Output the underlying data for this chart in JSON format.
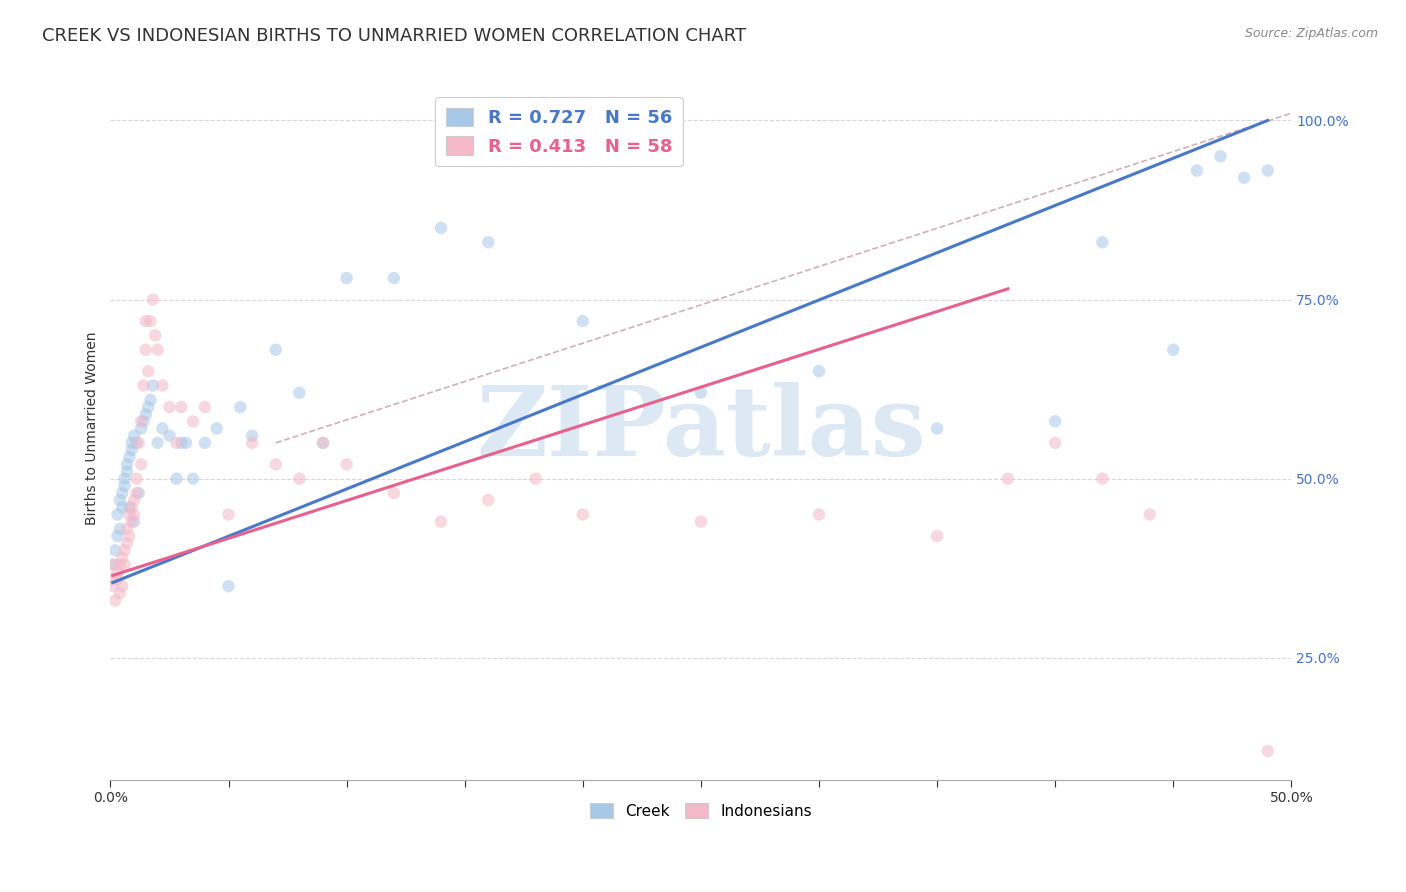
{
  "title": "CREEK VS INDONESIAN BIRTHS TO UNMARRIED WOMEN CORRELATION CHART",
  "source": "Source: ZipAtlas.com",
  "ylabel": "Births to Unmarried Women",
  "ytick_vals": [
    0.25,
    0.5,
    0.75,
    1.0
  ],
  "ytick_labels": [
    "25.0%",
    "50.0%",
    "75.0%",
    "100.0%"
  ],
  "legend_creek": "Creek",
  "legend_indonesians": "Indonesians",
  "creek_R": 0.727,
  "creek_N": 56,
  "indonesian_R": 0.413,
  "indonesian_N": 58,
  "creek_color": "#a8c8e8",
  "indonesian_color": "#f4b8c8",
  "creek_line_color": "#4878c8",
  "indonesian_line_color": "#e8608c",
  "watermark_text": "ZIPatlas",
  "watermark_color": "#dce8f4",
  "background_color": "#ffffff",
  "creek_x": [
    0.001,
    0.002,
    0.003,
    0.003,
    0.004,
    0.004,
    0.005,
    0.005,
    0.006,
    0.006,
    0.007,
    0.007,
    0.008,
    0.008,
    0.009,
    0.009,
    0.01,
    0.01,
    0.011,
    0.012,
    0.013,
    0.014,
    0.015,
    0.016,
    0.017,
    0.018,
    0.02,
    0.022,
    0.025,
    0.028,
    0.03,
    0.032,
    0.035,
    0.04,
    0.045,
    0.05,
    0.055,
    0.06,
    0.07,
    0.08,
    0.09,
    0.1,
    0.12,
    0.14,
    0.16,
    0.2,
    0.25,
    0.3,
    0.35,
    0.4,
    0.42,
    0.45,
    0.46,
    0.47,
    0.48,
    0.49
  ],
  "creek_y": [
    0.38,
    0.4,
    0.42,
    0.45,
    0.43,
    0.47,
    0.46,
    0.48,
    0.5,
    0.49,
    0.51,
    0.52,
    0.53,
    0.46,
    0.55,
    0.54,
    0.56,
    0.44,
    0.55,
    0.48,
    0.57,
    0.58,
    0.59,
    0.6,
    0.61,
    0.63,
    0.55,
    0.57,
    0.56,
    0.5,
    0.55,
    0.55,
    0.5,
    0.55,
    0.57,
    0.35,
    0.6,
    0.56,
    0.68,
    0.62,
    0.55,
    0.78,
    0.78,
    0.85,
    0.83,
    0.72,
    0.62,
    0.65,
    0.57,
    0.58,
    0.83,
    0.68,
    0.93,
    0.95,
    0.92,
    0.93
  ],
  "indonesian_x": [
    0.001,
    0.001,
    0.002,
    0.002,
    0.003,
    0.003,
    0.004,
    0.004,
    0.005,
    0.005,
    0.006,
    0.006,
    0.007,
    0.007,
    0.008,
    0.008,
    0.009,
    0.009,
    0.01,
    0.01,
    0.011,
    0.011,
    0.012,
    0.013,
    0.013,
    0.014,
    0.015,
    0.015,
    0.016,
    0.017,
    0.018,
    0.019,
    0.02,
    0.022,
    0.025,
    0.028,
    0.03,
    0.035,
    0.04,
    0.05,
    0.06,
    0.07,
    0.08,
    0.09,
    0.1,
    0.12,
    0.14,
    0.16,
    0.18,
    0.2,
    0.25,
    0.3,
    0.35,
    0.38,
    0.4,
    0.42,
    0.44,
    0.49
  ],
  "indonesian_y": [
    0.35,
    0.36,
    0.33,
    0.38,
    0.36,
    0.37,
    0.34,
    0.38,
    0.35,
    0.39,
    0.4,
    0.38,
    0.41,
    0.43,
    0.42,
    0.45,
    0.44,
    0.46,
    0.45,
    0.47,
    0.5,
    0.48,
    0.55,
    0.52,
    0.58,
    0.63,
    0.68,
    0.72,
    0.65,
    0.72,
    0.75,
    0.7,
    0.68,
    0.63,
    0.6,
    0.55,
    0.6,
    0.58,
    0.6,
    0.45,
    0.55,
    0.52,
    0.5,
    0.55,
    0.52,
    0.48,
    0.44,
    0.47,
    0.5,
    0.45,
    0.44,
    0.45,
    0.42,
    0.5,
    0.55,
    0.5,
    0.45,
    0.12
  ],
  "xlim": [
    0.0,
    0.5
  ],
  "ylim": [
    0.08,
    1.06
  ],
  "creek_line_x": [
    0.001,
    0.49
  ],
  "creek_line_y": [
    0.355,
    1.0
  ],
  "indo_line_x": [
    0.001,
    0.38
  ],
  "indo_line_y": [
    0.365,
    0.765
  ],
  "ref_line_x": [
    0.07,
    0.5
  ],
  "ref_line_y": [
    0.55,
    1.01
  ],
  "title_fontsize": 13,
  "axis_label_fontsize": 10,
  "tick_fontsize": 10,
  "marker_size": 80,
  "marker_alpha": 0.55,
  "line_width": 2.2
}
